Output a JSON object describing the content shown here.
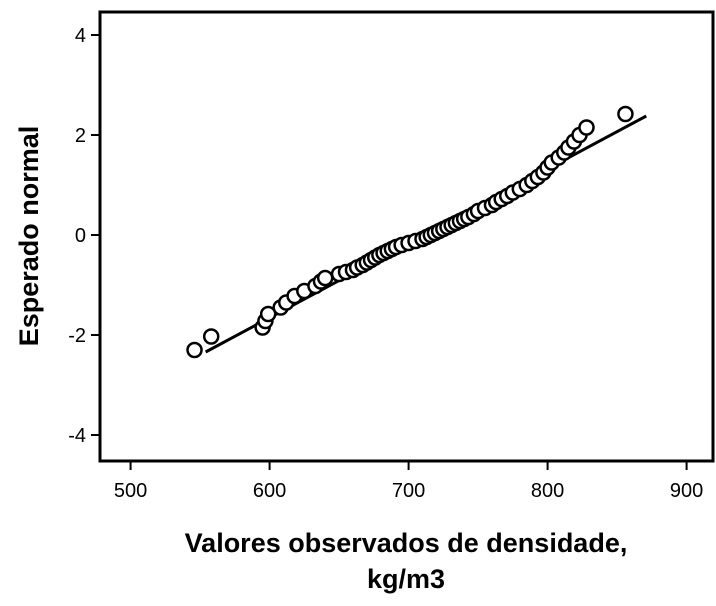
{
  "chart_data": {
    "type": "scatter",
    "xlabel": [
      "Valores observados de densidade,",
      "kg/m3"
    ],
    "ylabel": "Esperado normal",
    "x": [
      546,
      558,
      595,
      597,
      599,
      608,
      612,
      618,
      625,
      633,
      637,
      640,
      650,
      655,
      660,
      663,
      667,
      670,
      673,
      676,
      679,
      682,
      685,
      688,
      691,
      695,
      700,
      705,
      710,
      713,
      716,
      719,
      722,
      725,
      728,
      731,
      734,
      737,
      740,
      743,
      747,
      750,
      755,
      760,
      763,
      767,
      771,
      775,
      780,
      785,
      789,
      793,
      797,
      800,
      803,
      808,
      812,
      815,
      819,
      823,
      828,
      856
    ],
    "values": [
      -2.3,
      -2.03,
      -1.85,
      -1.72,
      -1.58,
      -1.45,
      -1.35,
      -1.22,
      -1.12,
      -1.02,
      -0.93,
      -0.86,
      -0.78,
      -0.74,
      -0.7,
      -0.65,
      -0.6,
      -0.55,
      -0.5,
      -0.45,
      -0.4,
      -0.36,
      -0.32,
      -0.28,
      -0.24,
      -0.2,
      -0.16,
      -0.12,
      -0.08,
      -0.04,
      0,
      0.04,
      0.08,
      0.12,
      0.16,
      0.2,
      0.24,
      0.28,
      0.32,
      0.36,
      0.42,
      0.48,
      0.54,
      0.6,
      0.66,
      0.72,
      0.78,
      0.85,
      0.92,
      1.0,
      1.08,
      1.16,
      1.25,
      1.35,
      1.45,
      1.55,
      1.65,
      1.75,
      1.87,
      2.0,
      2.15,
      2.42
    ],
    "color": "#000000",
    "reference_line": {
      "x": [
        554,
        871
      ],
      "y": [
        -2.34,
        2.38
      ]
    },
    "xlim": [
      478,
      919
    ],
    "ylim": [
      -4.52,
      4.46
    ],
    "xticks": [
      500,
      600,
      700,
      800,
      900
    ],
    "yticks": [
      -4,
      -2,
      0,
      2,
      4
    ]
  }
}
